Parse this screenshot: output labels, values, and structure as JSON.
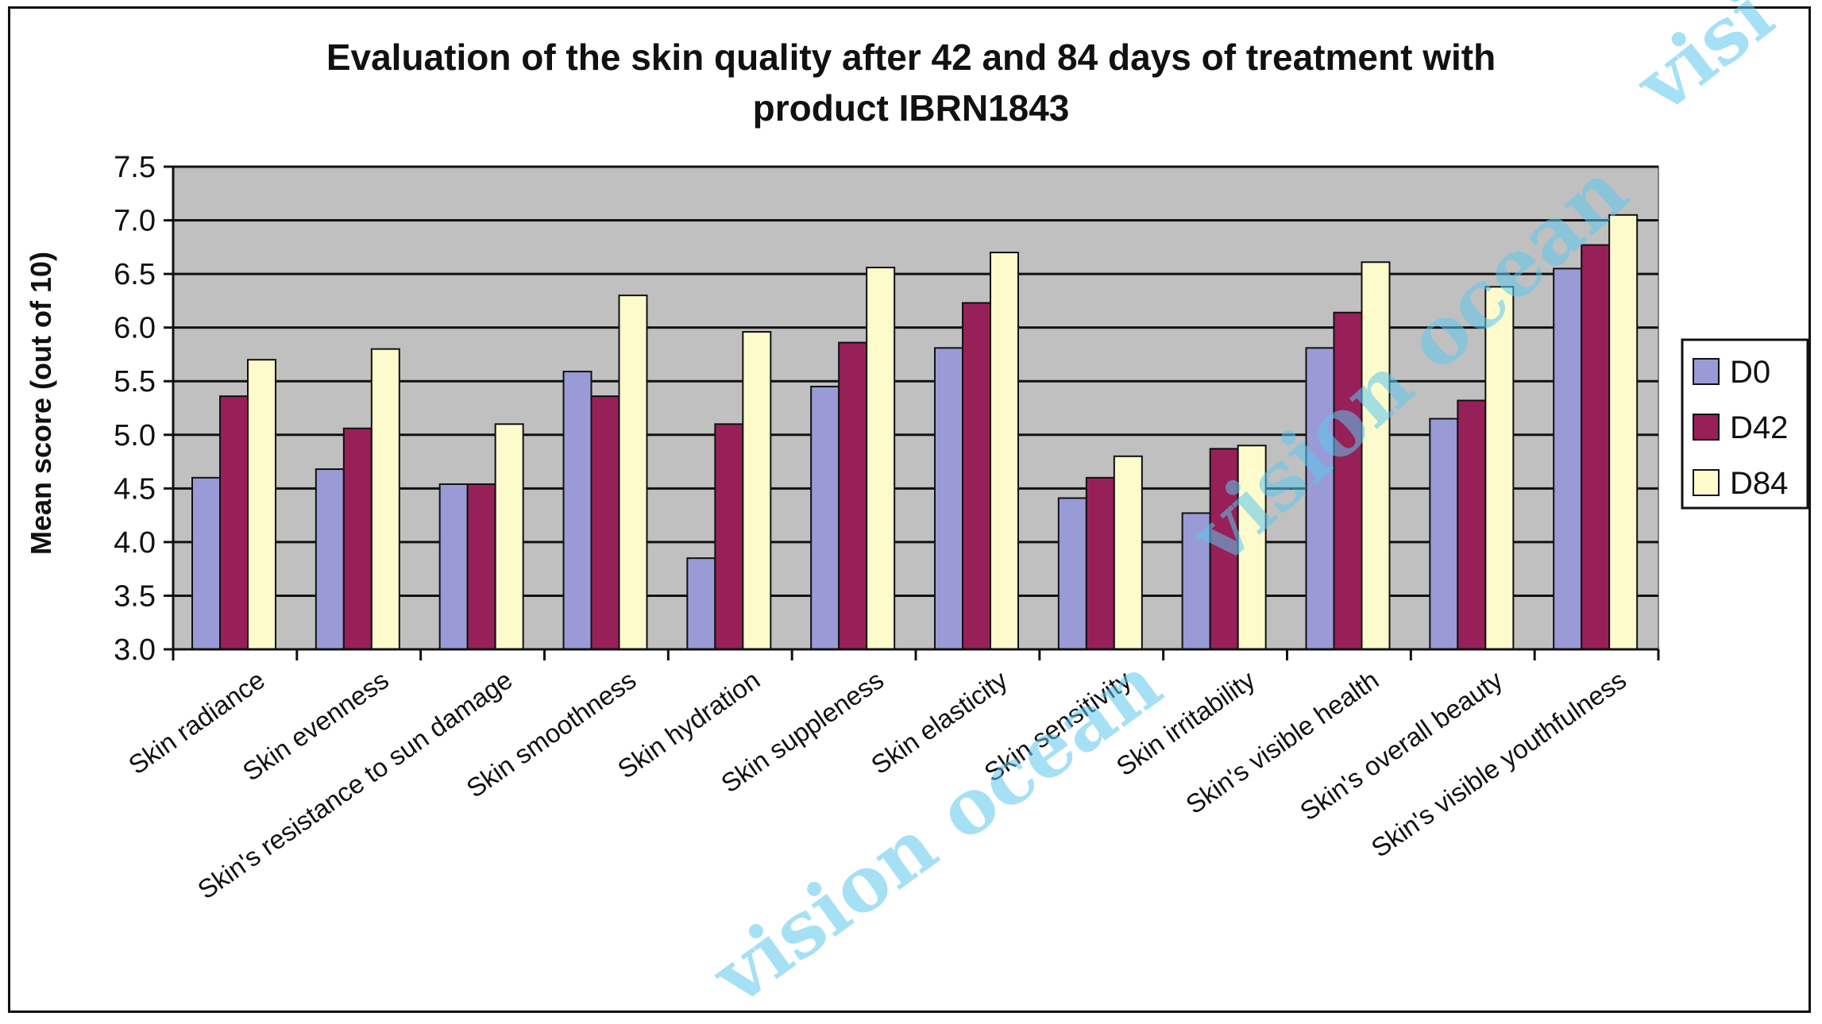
{
  "chart_data": {
    "type": "bar",
    "title": "Evaluation of the skin quality after 42 and 84 days of treatment with product IBRN1843",
    "title_lines": [
      "Evaluation of the skin quality after 42 and 84 days of treatment with",
      "product IBRN1843"
    ],
    "ylabel": "Mean score (out of 10)",
    "xlabel": "",
    "ylim": [
      3.0,
      7.5
    ],
    "yticks": [
      "3.0",
      "3.5",
      "4.0",
      "4.5",
      "5.0",
      "5.5",
      "6.0",
      "6.5",
      "7.0",
      "7.5"
    ],
    "grid": true,
    "legend_position": "right",
    "categories": [
      "Skin radiance",
      "Skin evenness",
      "Skin's resistance to sun damage",
      "Skin smoothness",
      "Skin hydration",
      "Skin suppleness",
      "Skin elasticity",
      "Skin sensitivity",
      "Skin irritability",
      "Skin's visible health",
      "Skin's overall beauty",
      "Skin's visible youthfulness"
    ],
    "series": [
      {
        "name": "D0",
        "color": "#9a9ad6",
        "values": [
          4.6,
          4.68,
          4.54,
          5.59,
          3.85,
          5.45,
          5.81,
          4.41,
          4.27,
          5.81,
          5.15,
          6.55
        ]
      },
      {
        "name": "D42",
        "color": "#982058",
        "values": [
          5.36,
          5.06,
          4.54,
          5.36,
          5.1,
          5.86,
          6.23,
          4.6,
          4.87,
          6.14,
          5.32,
          6.77
        ]
      },
      {
        "name": "D84",
        "color": "#fdfbcc",
        "values": [
          5.7,
          5.8,
          5.1,
          6.3,
          5.96,
          6.56,
          6.7,
          4.8,
          4.9,
          6.61,
          6.38,
          7.05
        ]
      }
    ],
    "plot_background": "#c0c0c0"
  },
  "watermark": [
    "vision ocean",
    "vision ocean",
    "visi"
  ]
}
